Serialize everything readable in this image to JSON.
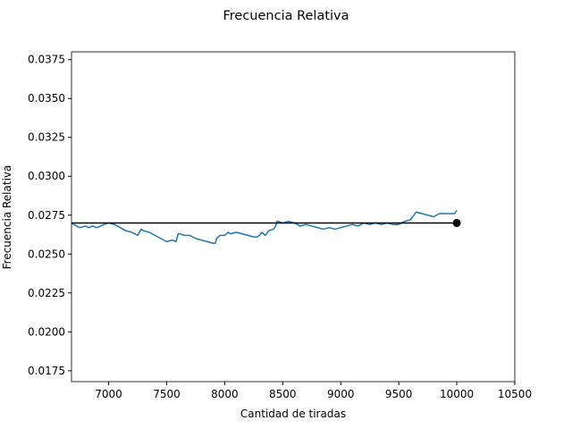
{
  "chart_data": {
    "type": "line",
    "title": "Frecuencia Relativa",
    "xlabel": "Cantidad de tiradas",
    "ylabel": "Frecuencia Relativa",
    "xlim": [
      6680,
      10500
    ],
    "ylim": [
      0.0168,
      0.038
    ],
    "xticks": [
      7000,
      7500,
      8000,
      8500,
      9000,
      9500,
      10000,
      10500
    ],
    "xtick_labels": [
      "7000",
      "7500",
      "8000",
      "8500",
      "9000",
      "9500",
      "10000",
      "10500"
    ],
    "yticks": [
      0.0175,
      0.02,
      0.0225,
      0.025,
      0.0275,
      0.03,
      0.0325,
      0.035,
      0.0375
    ],
    "ytick_labels": [
      "0.0175",
      "0.0200",
      "0.0225",
      "0.0250",
      "0.0275",
      "0.0300",
      "0.0325",
      "0.0350",
      "0.0375"
    ],
    "grid": false,
    "legend": "none",
    "colors": {
      "series": "#1f77b4",
      "reference": "#000000",
      "axes": "#000000"
    },
    "series": [
      {
        "x": [
          6680,
          6700,
          6750,
          6800,
          6830,
          6860,
          6900,
          6930,
          6960,
          7000,
          7050,
          7100,
          7150,
          7200,
          7250,
          7280,
          7300,
          7350,
          7400,
          7450,
          7500,
          7550,
          7580,
          7600,
          7620,
          7650,
          7700,
          7750,
          7800,
          7850,
          7900,
          7920,
          7930,
          7960,
          8000,
          8030,
          8050,
          8100,
          8150,
          8200,
          8250,
          8280,
          8300,
          8320,
          8350,
          8380,
          8420,
          8440,
          8450,
          8460,
          8500,
          8550,
          8600,
          8650,
          8700,
          8750,
          8800,
          8850,
          8900,
          8950,
          9000,
          9050,
          9100,
          9150,
          9200,
          9250,
          9300,
          9350,
          9400,
          9450,
          9500,
          9550,
          9600,
          9650,
          9700,
          9750,
          9800,
          9850,
          9900,
          9950,
          9980,
          10000
        ],
        "y": [
          0.027,
          0.0269,
          0.0267,
          0.0268,
          0.0267,
          0.0268,
          0.0267,
          0.0268,
          0.0269,
          0.027,
          0.0269,
          0.0267,
          0.0265,
          0.0264,
          0.0262,
          0.0266,
          0.0265,
          0.0264,
          0.0262,
          0.026,
          0.0258,
          0.0259,
          0.0258,
          0.0263,
          0.0263,
          0.0262,
          0.0262,
          0.026,
          0.0259,
          0.0258,
          0.0257,
          0.0257,
          0.026,
          0.0262,
          0.0262,
          0.0264,
          0.0263,
          0.0264,
          0.0263,
          0.0262,
          0.0261,
          0.0261,
          0.0262,
          0.0264,
          0.0262,
          0.0265,
          0.0266,
          0.0268,
          0.0271,
          0.0271,
          0.027,
          0.0271,
          0.027,
          0.0268,
          0.0269,
          0.0268,
          0.0267,
          0.0266,
          0.0267,
          0.0266,
          0.0267,
          0.0268,
          0.0269,
          0.0268,
          0.027,
          0.0269,
          0.027,
          0.0269,
          0.027,
          0.0269,
          0.0269,
          0.0271,
          0.0272,
          0.0277,
          0.0276,
          0.0275,
          0.0274,
          0.0276,
          0.0276,
          0.0276,
          0.0276,
          0.0278
        ]
      }
    ],
    "reference_line": {
      "x": [
        6680,
        10000
      ],
      "y": [
        0.027,
        0.027
      ]
    },
    "endpoint_marker": {
      "x": 10000,
      "y": 0.027
    }
  }
}
